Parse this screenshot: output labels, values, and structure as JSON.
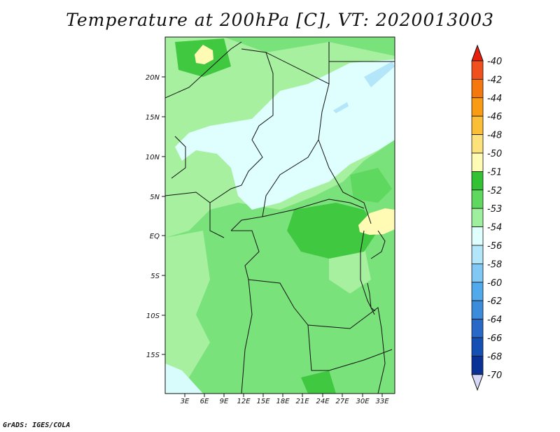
{
  "title": "Temperature at 200hPa [C], VT: 2020013003",
  "credit": "GrADS: IGES/COLA",
  "map": {
    "lat_labels": [
      "20N",
      "15N",
      "10N",
      "5N",
      "EQ",
      "5S",
      "10S",
      "15S"
    ],
    "lon_labels": [
      "3E",
      "6E",
      "9E",
      "12E",
      "15E",
      "18E",
      "21E",
      "24E",
      "27E",
      "30E",
      "33E"
    ]
  },
  "colorbar": {
    "labels": [
      "-40",
      "-42",
      "-44",
      "-46",
      "-48",
      "-50",
      "-51",
      "-52",
      "-53",
      "-54",
      "-56",
      "-58",
      "-60",
      "-62",
      "-64",
      "-66",
      "-68",
      "-70"
    ],
    "colors": [
      "#e61e0a",
      "#f0501e",
      "#f5780f",
      "#fa9b14",
      "#fbbe37",
      "#fde17b",
      "#fffab4",
      "#33c233",
      "#5fd85f",
      "#9ef09e",
      "#dfffff",
      "#b4e6fa",
      "#82c8f5",
      "#50aaeb",
      "#3c8cdc",
      "#2869c8",
      "#1450b4",
      "#0a3296",
      "#0a0a6e"
    ],
    "top_color": "#e61e0a",
    "bottom_color": "#d8d8f8"
  }
}
